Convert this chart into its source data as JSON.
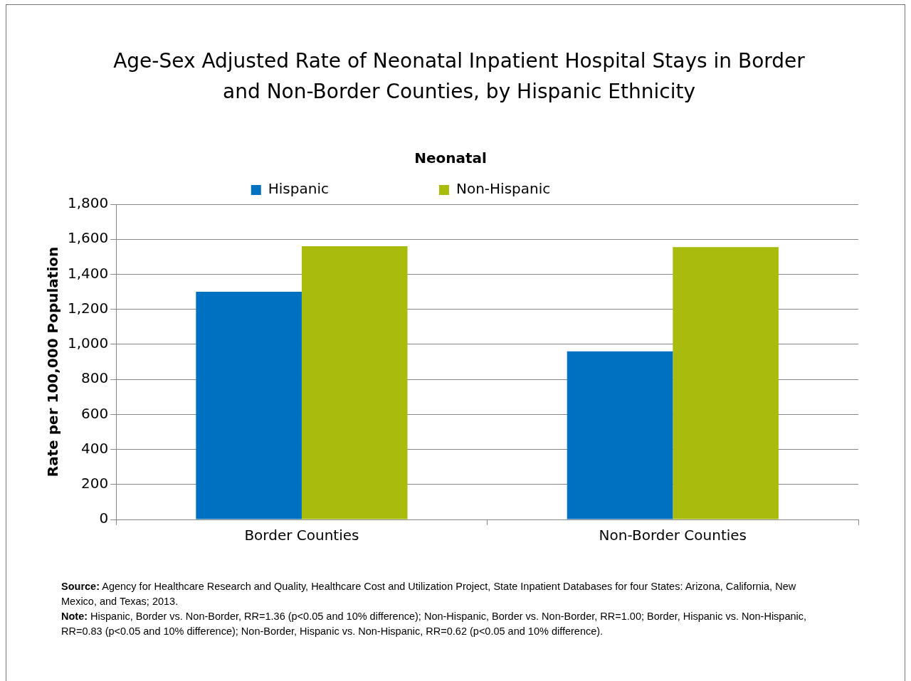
{
  "chart_data": {
    "type": "bar",
    "title": "Age-Sex Adjusted Rate of Neonatal Inpatient Hospital Stays in Border and Non-Border Counties, by Hispanic Ethnicity",
    "legend_title": "Neonatal",
    "ylabel": "Rate per 100,000 Population",
    "categories": [
      "Border Counties",
      "Non-Border Counties"
    ],
    "series": [
      {
        "name": "Hispanic",
        "color": "#0070c0",
        "values": [
          1300,
          960
        ]
      },
      {
        "name": "Non-Hispanic",
        "color": "#a9bb0c",
        "values": [
          1560,
          1555
        ]
      }
    ],
    "ylim": [
      0,
      1800
    ],
    "yticks": [
      0,
      200,
      400,
      600,
      800,
      {
        "value": 1000,
        "label": "1,000"
      },
      {
        "value": 1200,
        "label": "1,200"
      },
      {
        "value": 1400,
        "label": "1,400"
      },
      {
        "value": 1600,
        "label": "1,600"
      },
      {
        "value": 1800,
        "label": "1,800"
      }
    ],
    "grid": "y",
    "legend": "top",
    "annotations": [
      "Source: Agency for Healthcare Research and Quality, Healthcare Cost and Utilization Project, State Inpatient Databases for four States: Arizona, California, New Mexico, and Texas; 2013.",
      "Note: Hispanic, Border vs. Non-Border, RR=1.36 (p<0.05 and 10% difference); Non-Hispanic, Border vs. Non-Border, RR=1.00; Border, Hispanic vs. Non-Hispanic, RR=0.83 (p<0.05 and 10% difference); Non-Border, Hispanic vs. Non-Hispanic, RR=0.62 (p<0.05 and 10% difference)."
    ]
  }
}
